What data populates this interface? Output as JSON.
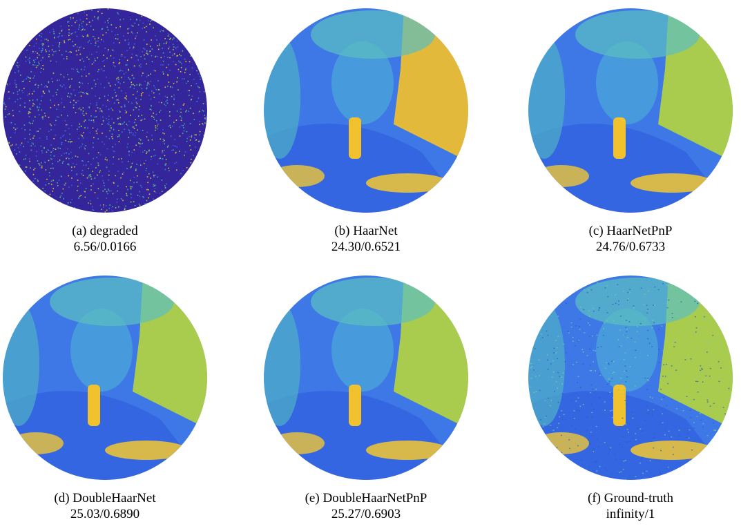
{
  "panels": [
    {
      "label": "(a) degraded",
      "metrics": "6.56/0.0166"
    },
    {
      "label": "(b) HaarNet",
      "metrics": "24.30/0.6521"
    },
    {
      "label": "(c) HaarNetPnP",
      "metrics": "24.76/0.6733"
    },
    {
      "label": "(d) DoubleHaarNet",
      "metrics": "25.03/0.6890"
    },
    {
      "label": "(e) DoubleHaarNetPnP",
      "metrics": "25.27/0.6903"
    },
    {
      "label": "(f) Ground-truth",
      "metrics": "infinity/1"
    }
  ]
}
